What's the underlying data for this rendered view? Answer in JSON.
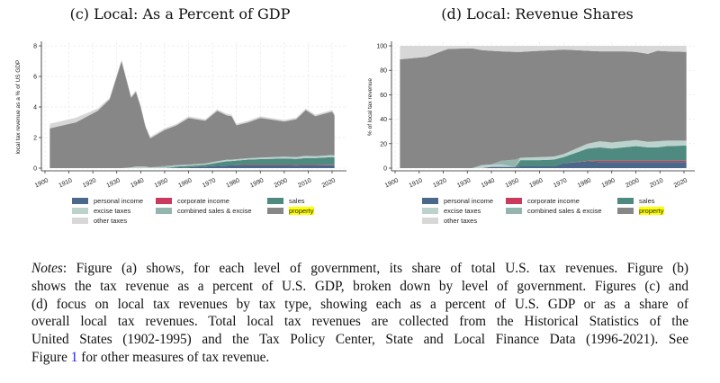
{
  "colors": {
    "personal income": "#4a6889",
    "corporate income": "#c93a5c",
    "sales": "#4f8a80",
    "excise taxes": "#bcd2cd",
    "combined sales & excise": "#94b4ae",
    "property": "#878787",
    "other taxes": "#d7d7d7",
    "highlight": "#ffff00",
    "link": "#1a1aff"
  },
  "legend": {
    "items": [
      "personal income",
      "corporate income",
      "sales",
      "excise taxes",
      "combined sales & excise",
      "property",
      "other taxes"
    ],
    "highlighted": "property"
  },
  "chart_data": [
    {
      "type": "area",
      "stacked": true,
      "title": "(c) Local: As a Percent of GDP",
      "xlabel": "",
      "ylabel": "local tax revenue as a % of US GDP",
      "xlim": [
        1900,
        2022
      ],
      "ylim": [
        0,
        8.2
      ],
      "xticks": [
        1900,
        1910,
        1920,
        1930,
        1940,
        1950,
        1960,
        1970,
        1980,
        1990,
        2000,
        2010,
        2020
      ],
      "yticks": [
        0,
        2,
        4,
        6,
        8
      ],
      "grid": true,
      "legend_position": "bottom",
      "x": [
        1902,
        1913,
        1922,
        1927,
        1932,
        1936,
        1938,
        1940,
        1942,
        1944,
        1950,
        1955,
        1960,
        1967,
        1972,
        1976,
        1978,
        1980,
        1985,
        1990,
        2000,
        2005,
        2009,
        2013,
        2020,
        2021
      ],
      "series": [
        {
          "name": "personal income",
          "values": [
            0,
            0,
            0,
            0,
            0,
            0,
            0,
            0,
            0,
            0,
            0,
            0.02,
            0.05,
            0.1,
            0.15,
            0.17,
            0.18,
            0.18,
            0.18,
            0.18,
            0.18,
            0.17,
            0.18,
            0.18,
            0.19,
            0.19
          ]
        },
        {
          "name": "corporate income",
          "values": [
            0,
            0,
            0,
            0,
            0,
            0,
            0,
            0,
            0,
            0,
            0,
            0,
            0,
            0,
            0,
            0,
            0,
            0.01,
            0.03,
            0.03,
            0.03,
            0.03,
            0.03,
            0.03,
            0.03,
            0.03
          ]
        },
        {
          "name": "sales",
          "values": [
            0,
            0,
            0,
            0,
            0,
            0,
            0,
            0,
            0,
            0,
            0,
            0.08,
            0.1,
            0.12,
            0.2,
            0.28,
            0.28,
            0.3,
            0.35,
            0.38,
            0.42,
            0.4,
            0.45,
            0.45,
            0.5,
            0.48
          ]
        },
        {
          "name": "excise taxes",
          "values": [
            0,
            0,
            0,
            0,
            0,
            0.05,
            0.1,
            0.1,
            0.1,
            0.05,
            0.05,
            0.07,
            0.08,
            0.08,
            0.1,
            0.1,
            0.09,
            0.09,
            0.09,
            0.1,
            0.12,
            0.12,
            0.14,
            0.12,
            0.13,
            0.12
          ]
        },
        {
          "name": "combined sales & excise",
          "values": [
            0,
            0,
            0,
            0,
            0,
            0,
            0,
            0,
            0,
            0,
            0.1,
            0.03,
            0,
            0,
            0,
            0,
            0,
            0,
            0,
            0,
            0,
            0,
            0,
            0,
            0,
            0
          ]
        },
        {
          "name": "property",
          "values": [
            2.6,
            3.0,
            3.75,
            4.5,
            7.0,
            4.55,
            4.9,
            3.9,
            2.6,
            1.9,
            2.35,
            2.6,
            3.05,
            2.8,
            3.3,
            2.9,
            2.85,
            2.22,
            2.35,
            2.6,
            2.3,
            2.48,
            3.0,
            2.62,
            2.85,
            2.63
          ]
        },
        {
          "name": "other taxes",
          "values": [
            0.3,
            0.3,
            0.15,
            0.1,
            0.1,
            0.1,
            0.1,
            0.1,
            0.1,
            0.1,
            0.1,
            0.1,
            0.1,
            0.1,
            0.1,
            0.1,
            0.1,
            0.1,
            0.1,
            0.1,
            0.1,
            0.1,
            0.1,
            0.1,
            0.1,
            0.1
          ]
        }
      ]
    },
    {
      "type": "area",
      "stacked": true,
      "title": "(d) Local: Revenue Shares",
      "xlabel": "",
      "ylabel": "% of local tax revenue",
      "xlim": [
        1900,
        2022
      ],
      "ylim": [
        0,
        100
      ],
      "xticks": [
        1900,
        1910,
        1920,
        1930,
        1940,
        1950,
        1960,
        1970,
        1980,
        1990,
        2000,
        2010,
        2020
      ],
      "yticks": [
        0,
        20,
        40,
        60,
        80,
        100
      ],
      "grid": true,
      "legend_position": "bottom",
      "x": [
        1902,
        1913,
        1922,
        1932,
        1936,
        1940,
        1944,
        1950,
        1952,
        1960,
        1966,
        1970,
        1980,
        1985,
        1990,
        1995,
        2000,
        2005,
        2009,
        2013,
        2021
      ],
      "series": [
        {
          "name": "personal income",
          "values": [
            0,
            0,
            0,
            0,
            0,
            1,
            1,
            1,
            1.5,
            1.5,
            1.5,
            4,
            5.5,
            5,
            5,
            5,
            5,
            5,
            5,
            5,
            5
          ]
        },
        {
          "name": "corporate income",
          "values": [
            0,
            0,
            0,
            0,
            0,
            0,
            0,
            0,
            0,
            0,
            0,
            0,
            0.5,
            1,
            1,
            1,
            1,
            1,
            1,
            1,
            1
          ]
        },
        {
          "name": "sales",
          "values": [
            0,
            0,
            0,
            0,
            0,
            0,
            0,
            0,
            5,
            5,
            5.5,
            5,
            10,
            11,
            10,
            11,
            12,
            11,
            11,
            12,
            12.5
          ]
        },
        {
          "name": "excise taxes",
          "values": [
            0,
            0,
            0,
            0,
            2.5,
            2,
            2,
            0,
            2,
            2.5,
            2.5,
            2.5,
            4,
            5,
            5,
            5,
            5,
            4.5,
            5,
            4.5,
            4
          ]
        },
        {
          "name": "combined sales & excise",
          "values": [
            0,
            0,
            0,
            0,
            0,
            0,
            3,
            6,
            0,
            0,
            0,
            0,
            0,
            0,
            0,
            0,
            0,
            0,
            0,
            0,
            0
          ]
        },
        {
          "name": "property",
          "values": [
            89,
            91,
            97.5,
            98,
            94,
            93,
            89.5,
            88,
            86.5,
            87,
            87,
            85.5,
            76,
            73.5,
            74.5,
            73.5,
            72,
            72,
            74,
            73,
            72.5
          ]
        },
        {
          "name": "other taxes",
          "values": [
            11,
            9,
            2.5,
            2,
            3.5,
            4,
            4.5,
            5,
            5,
            4,
            3.5,
            3,
            4,
            4.5,
            4.5,
            4.5,
            5,
            6.5,
            4,
            4.5,
            5
          ]
        }
      ]
    }
  ],
  "notes": {
    "label": "Notes",
    "lines": [
      ": Figure (a) shows, for each level of government, its share of total U.S. tax revenues. Figure (b)",
      "shows the tax revenue as a percent of U.S. GDP, broken down by level of government. Figures (c) and",
      "(d) focus on local tax revenues by tax type, showing each as a percent of U.S. GDP or as a share of",
      "overall local tax revenues. Total local tax revenues are collected from the Historical Statistics of the",
      "United States (1902-1995) and the Tax Policy Center, State and Local Finance Data (1996-2021). See"
    ],
    "last_before": "Figure ",
    "link": "1",
    "last_after": " for other measures of tax revenue."
  }
}
